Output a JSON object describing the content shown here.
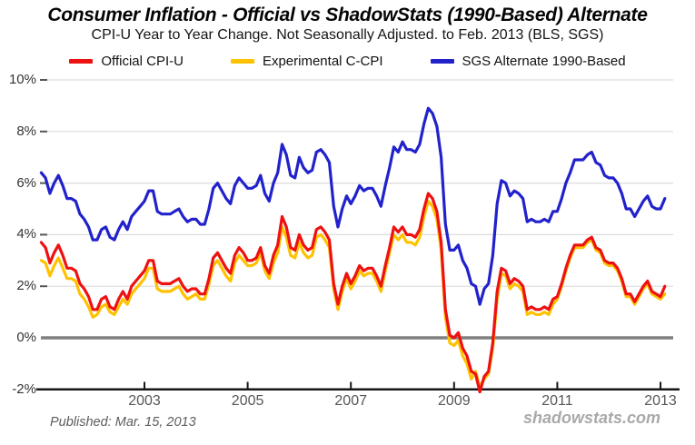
{
  "header": {
    "title": "Consumer Inflation - Official vs ShadowStats (1990-Based) Alternate",
    "subtitle": "CPI-U Year to Year Change. Not Seasonally Adjusted. to Feb. 2013  (BLS, SGS)"
  },
  "legend": [
    {
      "label": "Official CPI-U",
      "color": "#ee1111"
    },
    {
      "label": "Experimental C-CPI",
      "color": "#ffc200"
    },
    {
      "label": "SGS Alternate 1990-Based",
      "color": "#2222cc"
    }
  ],
  "footer": {
    "published": "Published: Mar. 15, 2013",
    "watermark": "shadowstats.com"
  },
  "chart_data": {
    "type": "line",
    "title": "Consumer Inflation - Official vs ShadowStats (1990-Based) Alternate",
    "subtitle": "CPI-U Year to Year Change. Not Seasonally Adjusted. to Feb. 2013  (BLS, SGS)",
    "x_unit": "month",
    "x_start": "2001-01",
    "x_end": "2013-02",
    "ylim": [
      -2.15,
      10.3
    ],
    "grid": "horizontal",
    "legend_position": "top",
    "colors": {
      "gridline": "#dcdcdc",
      "zero_line": "#808080",
      "axis": "#161616",
      "tick": "#555555"
    },
    "yticks": [
      {
        "label": "10%",
        "value": 10
      },
      {
        "label": "8%",
        "value": 8
      },
      {
        "label": "6%",
        "value": 6
      },
      {
        "label": "4%",
        "value": 4
      },
      {
        "label": "2%",
        "value": 2
      },
      {
        "label": "0%",
        "value": 0
      },
      {
        "label": "-2%",
        "value": -2
      }
    ],
    "xticks": [
      {
        "label": "2003",
        "month_index": 24
      },
      {
        "label": "2005",
        "month_index": 48
      },
      {
        "label": "2007",
        "month_index": 72
      },
      {
        "label": "2009",
        "month_index": 96
      },
      {
        "label": "2011",
        "month_index": 120
      },
      {
        "label": "2013",
        "month_index": 144
      }
    ],
    "series": [
      {
        "name": "Experimental C-CPI",
        "color": "#ffc200",
        "values": [
          3.0,
          2.9,
          2.4,
          2.8,
          3.1,
          2.7,
          2.3,
          2.3,
          2.2,
          1.7,
          1.5,
          1.2,
          0.8,
          0.9,
          1.2,
          1.3,
          1.0,
          0.9,
          1.2,
          1.5,
          1.3,
          1.7,
          1.9,
          2.1,
          2.3,
          2.7,
          2.7,
          1.9,
          1.8,
          1.8,
          1.8,
          1.9,
          2.0,
          1.7,
          1.5,
          1.6,
          1.7,
          1.5,
          1.5,
          2.1,
          2.8,
          3.0,
          2.7,
          2.4,
          2.2,
          2.9,
          3.2,
          3.0,
          2.8,
          2.8,
          2.9,
          3.3,
          2.6,
          2.3,
          2.9,
          3.3,
          4.3,
          3.9,
          3.2,
          3.1,
          3.7,
          3.3,
          3.1,
          3.2,
          3.9,
          4.0,
          3.8,
          3.5,
          1.9,
          1.1,
          1.8,
          2.3,
          1.9,
          2.2,
          2.6,
          2.4,
          2.5,
          2.5,
          2.2,
          1.8,
          2.6,
          3.3,
          4.0,
          3.8,
          4.0,
          3.7,
          3.7,
          3.6,
          3.9,
          4.7,
          5.3,
          5.1,
          4.6,
          3.4,
          0.8,
          -0.2,
          -0.3,
          -0.1,
          -0.7,
          -1.0,
          -1.6,
          -1.3,
          -1.9,
          -1.6,
          -1.4,
          -0.4,
          1.5,
          2.5,
          2.4,
          1.9,
          2.1,
          2.0,
          1.8,
          0.9,
          1.0,
          0.9,
          0.9,
          1.0,
          0.9,
          1.3,
          1.5,
          2.0,
          2.6,
          3.1,
          3.5,
          3.5,
          3.5,
          3.7,
          3.8,
          3.4,
          3.3,
          2.9,
          2.8,
          2.8,
          2.6,
          2.2,
          1.6,
          1.6,
          1.3,
          1.6,
          1.9,
          2.1,
          1.7,
          1.6,
          1.5,
          1.7
        ]
      },
      {
        "name": "Official CPI-U",
        "color": "#ee1111",
        "values": [
          3.7,
          3.5,
          2.9,
          3.3,
          3.6,
          3.2,
          2.7,
          2.7,
          2.6,
          2.1,
          1.9,
          1.6,
          1.1,
          1.1,
          1.5,
          1.6,
          1.2,
          1.1,
          1.5,
          1.8,
          1.5,
          2.0,
          2.2,
          2.4,
          2.6,
          3.0,
          3.0,
          2.2,
          2.1,
          2.1,
          2.1,
          2.2,
          2.3,
          2.0,
          1.8,
          1.9,
          1.9,
          1.7,
          1.7,
          2.3,
          3.1,
          3.3,
          3.0,
          2.7,
          2.5,
          3.2,
          3.5,
          3.3,
          3.0,
          3.0,
          3.1,
          3.5,
          2.8,
          2.5,
          3.2,
          3.6,
          4.7,
          4.3,
          3.5,
          3.4,
          4.0,
          3.6,
          3.4,
          3.5,
          4.2,
          4.3,
          4.1,
          3.8,
          2.1,
          1.3,
          2.0,
          2.5,
          2.1,
          2.4,
          2.8,
          2.6,
          2.7,
          2.7,
          2.4,
          2.0,
          2.8,
          3.5,
          4.3,
          4.1,
          4.3,
          4.0,
          4.0,
          3.9,
          4.2,
          5.0,
          5.6,
          5.4,
          4.9,
          3.7,
          1.1,
          0.1,
          0.0,
          0.2,
          -0.4,
          -0.7,
          -1.3,
          -1.4,
          -2.1,
          -1.5,
          -1.3,
          -0.2,
          1.8,
          2.7,
          2.6,
          2.1,
          2.3,
          2.2,
          2.0,
          1.1,
          1.2,
          1.1,
          1.1,
          1.2,
          1.1,
          1.5,
          1.6,
          2.1,
          2.7,
          3.2,
          3.6,
          3.6,
          3.6,
          3.8,
          3.9,
          3.5,
          3.4,
          3.0,
          2.9,
          2.9,
          2.7,
          2.3,
          1.7,
          1.7,
          1.4,
          1.7,
          2.0,
          2.2,
          1.8,
          1.7,
          1.6,
          2.0
        ]
      },
      {
        "name": "SGS Alternate 1990-Based",
        "color": "#2222cc",
        "values": [
          6.4,
          6.2,
          5.6,
          6.0,
          6.3,
          5.9,
          5.4,
          5.4,
          5.3,
          4.8,
          4.6,
          4.3,
          3.8,
          3.8,
          4.2,
          4.3,
          3.9,
          3.8,
          4.2,
          4.5,
          4.2,
          4.7,
          4.9,
          5.1,
          5.3,
          5.7,
          5.7,
          4.9,
          4.8,
          4.8,
          4.8,
          4.9,
          5.0,
          4.7,
          4.5,
          4.6,
          4.6,
          4.4,
          4.4,
          5.0,
          5.8,
          6.0,
          5.7,
          5.4,
          5.2,
          5.9,
          6.2,
          6.0,
          5.8,
          5.8,
          5.9,
          6.3,
          5.6,
          5.3,
          6.0,
          6.4,
          7.5,
          7.1,
          6.3,
          6.2,
          7.0,
          6.6,
          6.4,
          6.5,
          7.2,
          7.3,
          7.1,
          6.8,
          5.1,
          4.3,
          5.0,
          5.5,
          5.2,
          5.5,
          5.9,
          5.7,
          5.8,
          5.8,
          5.5,
          5.1,
          5.9,
          6.6,
          7.4,
          7.2,
          7.6,
          7.3,
          7.3,
          7.2,
          7.5,
          8.3,
          8.9,
          8.7,
          8.2,
          7.0,
          4.4,
          3.4,
          3.4,
          3.6,
          3.0,
          2.7,
          2.1,
          2.0,
          1.3,
          1.9,
          2.1,
          3.2,
          5.2,
          6.1,
          6.0,
          5.5,
          5.7,
          5.6,
          5.4,
          4.5,
          4.6,
          4.5,
          4.5,
          4.6,
          4.5,
          4.9,
          4.9,
          5.4,
          6.0,
          6.4,
          6.9,
          6.9,
          6.9,
          7.1,
          7.2,
          6.8,
          6.7,
          6.3,
          6.2,
          6.2,
          6.0,
          5.6,
          5.0,
          5.0,
          4.7,
          5.0,
          5.3,
          5.5,
          5.1,
          5.0,
          5.0,
          5.4
        ]
      }
    ]
  }
}
